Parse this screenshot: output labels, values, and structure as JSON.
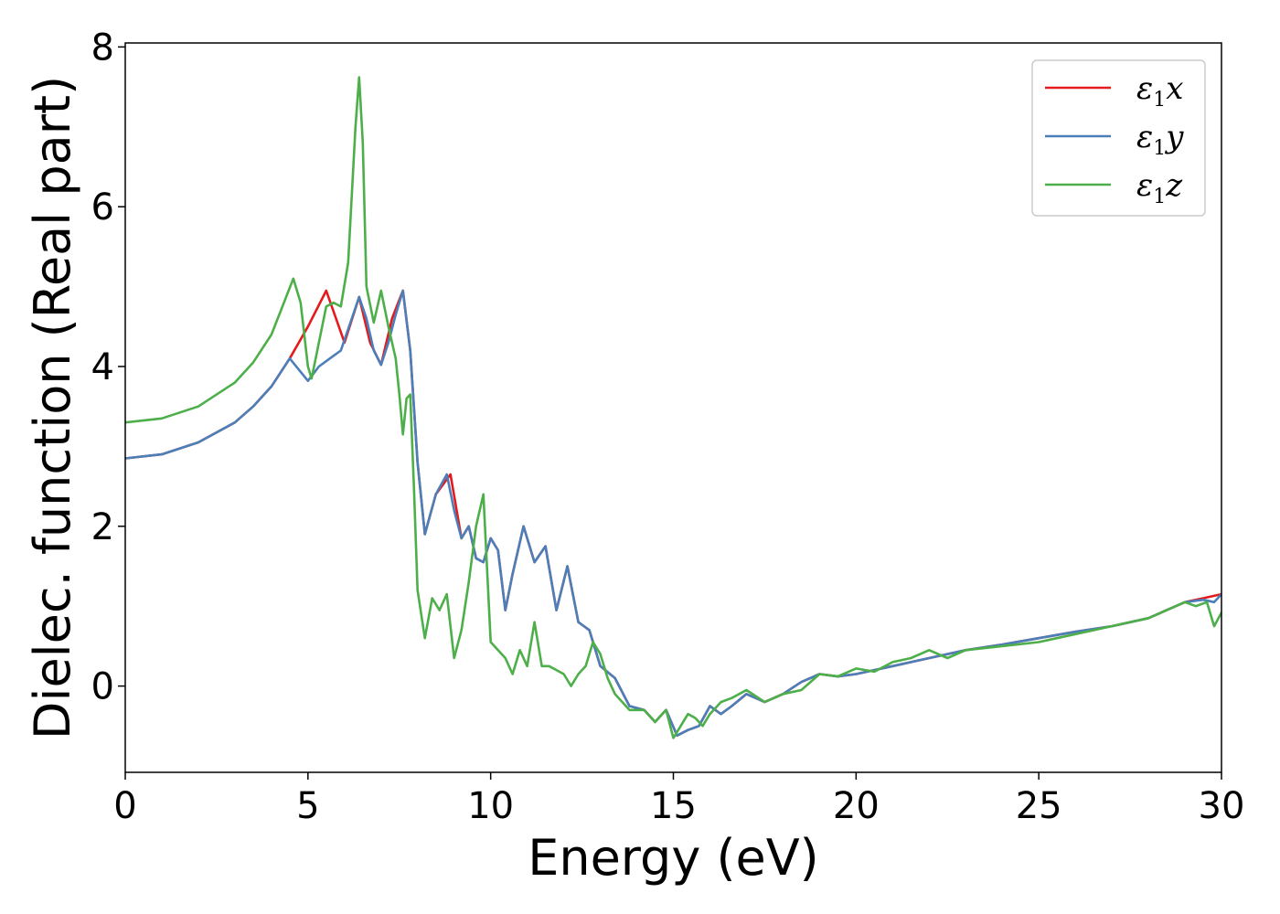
{
  "chart_data": {
    "type": "line",
    "xlabel": "Energy (eV)",
    "ylabel": "Dielec. function (Real part)",
    "xlim": [
      0,
      30
    ],
    "ylim": [
      -1.08,
      8.05
    ],
    "x_ticks": [
      0,
      5,
      10,
      15,
      20,
      25,
      30
    ],
    "y_ticks": [
      0,
      2,
      4,
      6,
      8
    ],
    "grid": false,
    "legend_position": "top-right",
    "series": [
      {
        "name": "ε1x",
        "legend_main": "ε",
        "legend_sub": "1",
        "legend_var": "x",
        "color": "#e41a1c",
        "x": [
          0,
          1,
          2,
          3,
          3.5,
          4,
          4.5,
          5,
          5.5,
          6,
          6.4,
          6.7,
          7.0,
          7.3,
          7.6,
          7.8,
          8.0,
          8.2,
          8.5,
          8.9,
          9.2,
          9.4,
          9.6,
          9.8,
          10.0,
          10.2,
          10.4,
          10.6,
          10.9,
          11.2,
          11.5,
          11.8,
          12.1,
          12.4,
          12.7,
          13.0,
          13.4,
          13.8,
          14.2,
          14.5,
          14.8,
          15.1,
          15.4,
          15.7,
          16.0,
          16.3,
          16.6,
          17.0,
          17.5,
          18.0,
          18.5,
          19.0,
          19.5,
          20.0,
          21.0,
          22.0,
          23.0,
          24.0,
          25.0,
          26.0,
          27.0,
          28.0,
          28.5,
          29.0,
          29.5,
          30.0
        ],
        "y": [
          2.85,
          2.9,
          3.05,
          3.3,
          3.5,
          3.75,
          4.1,
          4.5,
          4.95,
          4.3,
          4.87,
          4.3,
          4.02,
          4.6,
          4.95,
          4.2,
          2.8,
          1.9,
          2.4,
          2.65,
          1.85,
          2.0,
          1.6,
          1.55,
          1.85,
          1.7,
          0.95,
          1.4,
          2.0,
          1.55,
          1.75,
          0.95,
          1.5,
          0.8,
          0.7,
          0.25,
          0.1,
          -0.25,
          -0.3,
          -0.45,
          -0.3,
          -0.62,
          -0.55,
          -0.5,
          -0.25,
          -0.35,
          -0.25,
          -0.1,
          -0.2,
          -0.1,
          0.05,
          0.15,
          0.12,
          0.15,
          0.25,
          0.35,
          0.45,
          0.52,
          0.6,
          0.68,
          0.75,
          0.85,
          0.95,
          1.05,
          1.1,
          1.15
        ]
      },
      {
        "name": "ε1y",
        "legend_main": "ε",
        "legend_sub": "1",
        "legend_var": "y",
        "color": "#4b7fb9",
        "x": [
          0,
          1,
          2,
          3,
          3.5,
          4,
          4.5,
          5,
          5.3,
          5.6,
          5.9,
          6.2,
          6.4,
          6.6,
          6.8,
          7.0,
          7.2,
          7.4,
          7.6,
          7.8,
          8.0,
          8.2,
          8.5,
          8.8,
          9.0,
          9.2,
          9.4,
          9.6,
          9.8,
          10.0,
          10.2,
          10.4,
          10.6,
          10.9,
          11.2,
          11.5,
          11.8,
          12.1,
          12.4,
          12.7,
          13.0,
          13.4,
          13.8,
          14.2,
          14.5,
          14.8,
          15.1,
          15.4,
          15.7,
          16.0,
          16.3,
          16.6,
          17.0,
          17.5,
          18.0,
          18.5,
          19.0,
          19.5,
          20.0,
          21.0,
          22.0,
          23.0,
          24.0,
          25.0,
          26.0,
          27.0,
          28.0,
          28.5,
          29.0,
          29.5,
          29.8,
          30.0
        ],
        "y": [
          2.85,
          2.9,
          3.05,
          3.3,
          3.5,
          3.75,
          4.1,
          3.82,
          4.0,
          4.1,
          4.2,
          4.6,
          4.87,
          4.6,
          4.2,
          4.02,
          4.3,
          4.65,
          4.95,
          4.2,
          2.8,
          1.9,
          2.4,
          2.65,
          2.2,
          1.85,
          2.0,
          1.6,
          1.55,
          1.85,
          1.7,
          0.95,
          1.4,
          2.0,
          1.55,
          1.75,
          0.95,
          1.5,
          0.8,
          0.7,
          0.25,
          0.1,
          -0.25,
          -0.3,
          -0.45,
          -0.3,
          -0.62,
          -0.55,
          -0.5,
          -0.25,
          -0.35,
          -0.25,
          -0.1,
          -0.2,
          -0.1,
          0.05,
          0.15,
          0.12,
          0.15,
          0.25,
          0.35,
          0.45,
          0.52,
          0.6,
          0.68,
          0.75,
          0.85,
          0.95,
          1.05,
          1.08,
          1.05,
          1.15
        ]
      },
      {
        "name": "ε1z",
        "legend_main": "ε",
        "legend_sub": "1",
        "legend_var": "z",
        "color": "#4daf4a",
        "x": [
          0,
          1,
          2,
          3,
          3.5,
          4,
          4.3,
          4.6,
          4.8,
          5.0,
          5.1,
          5.3,
          5.5,
          5.7,
          5.9,
          6.1,
          6.3,
          6.4,
          6.5,
          6.6,
          6.8,
          7.0,
          7.2,
          7.4,
          7.5,
          7.6,
          7.7,
          7.8,
          7.9,
          8.0,
          8.2,
          8.4,
          8.6,
          8.8,
          9.0,
          9.2,
          9.4,
          9.6,
          9.8,
          10.0,
          10.2,
          10.4,
          10.6,
          10.8,
          11.0,
          11.2,
          11.4,
          11.6,
          11.8,
          12.0,
          12.2,
          12.4,
          12.6,
          12.8,
          13.0,
          13.2,
          13.4,
          13.8,
          14.2,
          14.5,
          14.8,
          15.0,
          15.2,
          15.4,
          15.6,
          15.8,
          16.0,
          16.3,
          16.6,
          17.0,
          17.5,
          18.0,
          18.5,
          19.0,
          19.5,
          20.0,
          20.5,
          21.0,
          21.5,
          22.0,
          22.5,
          23.0,
          24.0,
          25.0,
          26.0,
          27.0,
          28.0,
          28.5,
          29.0,
          29.3,
          29.6,
          29.8,
          30.0
        ],
        "y": [
          3.3,
          3.35,
          3.5,
          3.8,
          4.05,
          4.4,
          4.75,
          5.1,
          4.8,
          4.0,
          3.85,
          4.3,
          4.75,
          4.8,
          4.75,
          5.3,
          7.0,
          7.62,
          6.8,
          5.0,
          4.55,
          4.95,
          4.5,
          4.1,
          3.65,
          3.15,
          3.6,
          3.65,
          2.5,
          1.2,
          0.6,
          1.1,
          0.95,
          1.15,
          0.35,
          0.7,
          1.3,
          2.0,
          2.4,
          0.55,
          0.45,
          0.35,
          0.15,
          0.45,
          0.25,
          0.8,
          0.25,
          0.25,
          0.2,
          0.15,
          0.0,
          0.15,
          0.25,
          0.55,
          0.4,
          0.1,
          -0.1,
          -0.3,
          -0.3,
          -0.45,
          -0.3,
          -0.65,
          -0.5,
          -0.35,
          -0.4,
          -0.5,
          -0.35,
          -0.2,
          -0.15,
          -0.05,
          -0.2,
          -0.1,
          -0.05,
          0.15,
          0.12,
          0.22,
          0.18,
          0.3,
          0.35,
          0.45,
          0.35,
          0.45,
          0.5,
          0.55,
          0.65,
          0.75,
          0.85,
          0.95,
          1.05,
          1.0,
          1.05,
          0.75,
          0.92
        ]
      }
    ]
  }
}
